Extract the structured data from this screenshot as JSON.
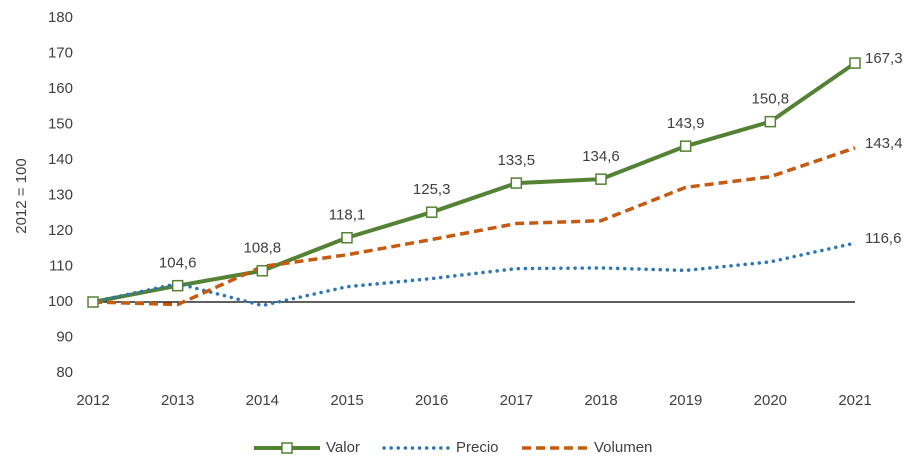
{
  "chart_data": {
    "type": "line",
    "y_label": "2012 = 100",
    "categories": [
      "2012",
      "2013",
      "2014",
      "2015",
      "2016",
      "2017",
      "2018",
      "2019",
      "2020",
      "2021"
    ],
    "series": [
      {
        "name": "Valor",
        "color": "#548235",
        "style": "solid",
        "marker": "square",
        "values": [
          100,
          104.6,
          108.8,
          118.1,
          125.3,
          133.5,
          134.6,
          143.9,
          150.8,
          167.3
        ],
        "value_labels": [
          null,
          "104,6",
          "108,8",
          "118,1",
          "125,3",
          "133,5",
          "134,6",
          "143,9",
          "150,8",
          "167,3"
        ]
      },
      {
        "name": "Precio",
        "color": "#2e75b6",
        "style": "dotted",
        "values": [
          100,
          105.2,
          99,
          104.3,
          106.6,
          109.4,
          109.6,
          108.9,
          111.3,
          116.6
        ],
        "value_labels": [
          null,
          null,
          null,
          null,
          null,
          null,
          null,
          null,
          null,
          "116,6"
        ]
      },
      {
        "name": "Volumen",
        "color": "#c55a11",
        "style": "dashed",
        "values": [
          100,
          99.3,
          110,
          113.3,
          117.6,
          122.1,
          122.9,
          132.3,
          135.3,
          143.4
        ],
        "value_labels": [
          null,
          null,
          null,
          null,
          null,
          null,
          null,
          null,
          null,
          "143,4"
        ]
      }
    ],
    "ylim": [
      80,
      180
    ],
    "yticks": [
      80,
      90,
      100,
      110,
      120,
      130,
      140,
      150,
      160,
      170,
      180
    ],
    "reference_line": 100,
    "grid": false,
    "legend": "bottom"
  }
}
